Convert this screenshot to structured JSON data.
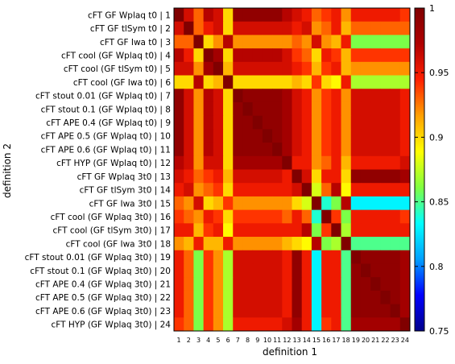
{
  "chart_data": {
    "type": "heatmap",
    "xlabel": "definition 1",
    "ylabel": "definition 2",
    "x_tick_labels": [
      "1",
      "2",
      "3",
      "4",
      "5",
      "6",
      "7",
      "8",
      "9",
      "10",
      "11",
      "12",
      "13",
      "14",
      "15",
      "16",
      "17",
      "18",
      "19",
      "20",
      "21",
      "22",
      "23",
      "24"
    ],
    "y_tick_labels": [
      "cFT GF Wplaq t0 | 1",
      "cFT GF tlSym t0 | 2",
      "cFT GF Iwa t0 | 3",
      "cFT cool (GF Wplaq t0) | 4",
      "cFT cool (GF tlSym t0) | 5",
      "cFT cool (GF Iwa t0) | 6",
      "cFT stout 0.01 (GF Wplaq t0) | 7",
      "cFT stout 0.1 (GF Wplaq t0) | 8",
      "cFT APE 0.4 (GF Wplaq t0) | 9",
      "cFT APE 0.5 (GF Wplaq t0) | 10",
      "cFT APE 0.6 (GF Wplaq t0) | 11",
      "cFT HYP (GF Wplaq t0) | 12",
      "cFT GF Wplaq 3t0 | 13",
      "cFT GF tlSym 3t0 | 14",
      "cFT GF Iwa 3t0 | 15",
      "cFT cool (GF Wplaq 3t0) | 16",
      "cFT cool (GF tlSym 3t0) | 17",
      "cFT cool (GF Iwa 3t0 | 18",
      "cFT stout 0.01 (GF Wplaq 3t0) | 19",
      "cFT stout 0.1 (GF Wplaq 3t0) | 20",
      "cFT APE 0.4 (GF Wplaq 3t0) | 21",
      "cFT APE 0.5 (GF Wplaq 3t0) | 22",
      "cFT APE 0.6 (GF Wplaq 3t0) | 23",
      "cFT HYP (GF Wplaq 3t0) | 24"
    ],
    "colorbar": {
      "min": 0.75,
      "max": 1.0,
      "ticks": [
        "1",
        "0.95",
        "0.9",
        "0.85",
        "0.8",
        "0.75"
      ]
    },
    "colorscale": [
      "#00008b",
      "#0000ff",
      "#00a0ff",
      "#00ffff",
      "#80ff40",
      "#ffff00",
      "#ffa000",
      "#ff2000",
      "#b00000",
      "#800000"
    ],
    "values": [
      [
        1.0,
        0.96,
        0.93,
        0.97,
        0.96,
        0.9,
        0.99,
        0.99,
        0.99,
        0.99,
        0.99,
        0.97,
        0.96,
        0.95,
        0.93,
        0.94,
        0.95,
        0.92,
        0.95,
        0.95,
        0.95,
        0.95,
        0.95,
        0.94
      ],
      [
        0.96,
        1.0,
        0.93,
        0.95,
        0.96,
        0.9,
        0.96,
        0.96,
        0.96,
        0.96,
        0.96,
        0.96,
        0.95,
        0.96,
        0.92,
        0.93,
        0.95,
        0.91,
        0.93,
        0.93,
        0.93,
        0.93,
        0.93,
        0.93
      ],
      [
        0.93,
        0.93,
        1.0,
        0.9,
        0.92,
        0.97,
        0.92,
        0.92,
        0.92,
        0.92,
        0.92,
        0.92,
        0.93,
        0.92,
        0.96,
        0.92,
        0.91,
        0.95,
        0.86,
        0.86,
        0.86,
        0.86,
        0.86,
        0.86
      ],
      [
        0.97,
        0.95,
        0.9,
        1.0,
        0.98,
        0.9,
        0.97,
        0.97,
        0.97,
        0.97,
        0.97,
        0.96,
        0.94,
        0.93,
        0.9,
        0.95,
        0.94,
        0.91,
        0.94,
        0.94,
        0.94,
        0.94,
        0.94,
        0.94
      ],
      [
        0.96,
        0.96,
        0.92,
        0.98,
        1.0,
        0.91,
        0.96,
        0.96,
        0.96,
        0.96,
        0.96,
        0.96,
        0.95,
        0.94,
        0.91,
        0.94,
        0.95,
        0.91,
        0.92,
        0.92,
        0.92,
        0.92,
        0.92,
        0.92
      ],
      [
        0.9,
        0.9,
        0.97,
        0.9,
        0.91,
        1.0,
        0.9,
        0.9,
        0.9,
        0.9,
        0.9,
        0.9,
        0.91,
        0.9,
        0.94,
        0.9,
        0.89,
        0.95,
        0.87,
        0.87,
        0.87,
        0.87,
        0.87,
        0.87
      ],
      [
        0.99,
        0.96,
        0.92,
        0.97,
        0.96,
        0.9,
        1.0,
        0.99,
        0.99,
        0.99,
        0.99,
        0.98,
        0.96,
        0.95,
        0.92,
        0.94,
        0.95,
        0.92,
        0.96,
        0.96,
        0.96,
        0.96,
        0.96,
        0.95
      ],
      [
        0.99,
        0.96,
        0.92,
        0.97,
        0.96,
        0.9,
        0.99,
        1.0,
        0.99,
        0.99,
        0.99,
        0.98,
        0.96,
        0.95,
        0.92,
        0.94,
        0.95,
        0.92,
        0.96,
        0.96,
        0.96,
        0.96,
        0.96,
        0.95
      ],
      [
        0.99,
        0.96,
        0.92,
        0.97,
        0.96,
        0.9,
        0.99,
        0.99,
        1.0,
        0.99,
        0.99,
        0.98,
        0.96,
        0.95,
        0.92,
        0.94,
        0.95,
        0.92,
        0.96,
        0.96,
        0.96,
        0.96,
        0.96,
        0.95
      ],
      [
        0.99,
        0.96,
        0.92,
        0.97,
        0.96,
        0.9,
        0.99,
        0.99,
        0.99,
        1.0,
        0.99,
        0.98,
        0.96,
        0.95,
        0.92,
        0.94,
        0.95,
        0.92,
        0.96,
        0.96,
        0.96,
        0.96,
        0.96,
        0.95
      ],
      [
        0.99,
        0.96,
        0.92,
        0.97,
        0.96,
        0.9,
        0.99,
        0.99,
        0.99,
        0.99,
        1.0,
        0.98,
        0.96,
        0.95,
        0.92,
        0.94,
        0.95,
        0.92,
        0.96,
        0.96,
        0.96,
        0.96,
        0.96,
        0.95
      ],
      [
        0.97,
        0.96,
        0.92,
        0.96,
        0.96,
        0.9,
        0.98,
        0.98,
        0.98,
        0.98,
        0.98,
        1.0,
        0.95,
        0.95,
        0.92,
        0.93,
        0.95,
        0.91,
        0.95,
        0.95,
        0.95,
        0.95,
        0.95,
        0.96
      ],
      [
        0.96,
        0.95,
        0.93,
        0.94,
        0.95,
        0.91,
        0.96,
        0.96,
        0.96,
        0.96,
        0.96,
        0.95,
        1.0,
        0.96,
        0.9,
        0.95,
        0.95,
        0.9,
        0.99,
        0.99,
        0.99,
        0.99,
        0.99,
        0.98
      ],
      [
        0.95,
        0.96,
        0.92,
        0.93,
        0.94,
        0.9,
        0.95,
        0.95,
        0.95,
        0.95,
        0.95,
        0.95,
        0.96,
        1.0,
        0.88,
        0.93,
        0.97,
        0.89,
        0.95,
        0.95,
        0.95,
        0.95,
        0.95,
        0.95
      ],
      [
        0.93,
        0.92,
        0.96,
        0.9,
        0.91,
        0.94,
        0.92,
        0.92,
        0.92,
        0.92,
        0.92,
        0.92,
        0.9,
        0.88,
        1.0,
        0.84,
        0.86,
        0.97,
        0.83,
        0.83,
        0.83,
        0.83,
        0.83,
        0.83
      ],
      [
        0.94,
        0.93,
        0.92,
        0.95,
        0.94,
        0.9,
        0.94,
        0.94,
        0.94,
        0.94,
        0.94,
        0.93,
        0.95,
        0.93,
        0.84,
        1.0,
        0.94,
        0.86,
        0.95,
        0.95,
        0.95,
        0.95,
        0.95,
        0.94
      ],
      [
        0.95,
        0.95,
        0.91,
        0.94,
        0.95,
        0.89,
        0.95,
        0.95,
        0.95,
        0.95,
        0.95,
        0.95,
        0.95,
        0.97,
        0.86,
        0.94,
        1.0,
        0.87,
        0.95,
        0.95,
        0.95,
        0.95,
        0.95,
        0.95
      ],
      [
        0.92,
        0.91,
        0.95,
        0.91,
        0.91,
        0.95,
        0.92,
        0.92,
        0.92,
        0.92,
        0.92,
        0.91,
        0.9,
        0.89,
        0.97,
        0.86,
        0.87,
        1.0,
        0.85,
        0.85,
        0.85,
        0.85,
        0.85,
        0.85
      ],
      [
        0.95,
        0.93,
        0.86,
        0.94,
        0.92,
        0.87,
        0.96,
        0.96,
        0.96,
        0.96,
        0.96,
        0.95,
        0.99,
        0.95,
        0.83,
        0.95,
        0.95,
        0.85,
        1.0,
        0.99,
        0.99,
        0.99,
        0.99,
        0.98
      ],
      [
        0.95,
        0.93,
        0.86,
        0.94,
        0.92,
        0.87,
        0.96,
        0.96,
        0.96,
        0.96,
        0.96,
        0.95,
        0.99,
        0.95,
        0.83,
        0.95,
        0.95,
        0.85,
        0.99,
        1.0,
        0.99,
        0.99,
        0.99,
        0.98
      ],
      [
        0.95,
        0.93,
        0.86,
        0.94,
        0.92,
        0.87,
        0.96,
        0.96,
        0.96,
        0.96,
        0.96,
        0.95,
        0.99,
        0.95,
        0.83,
        0.95,
        0.95,
        0.85,
        0.99,
        0.99,
        1.0,
        0.99,
        0.99,
        0.98
      ],
      [
        0.95,
        0.93,
        0.86,
        0.94,
        0.92,
        0.87,
        0.96,
        0.96,
        0.96,
        0.96,
        0.96,
        0.95,
        0.99,
        0.95,
        0.83,
        0.95,
        0.95,
        0.85,
        0.99,
        0.99,
        0.99,
        1.0,
        0.99,
        0.98
      ],
      [
        0.95,
        0.93,
        0.86,
        0.94,
        0.92,
        0.87,
        0.96,
        0.96,
        0.96,
        0.96,
        0.96,
        0.95,
        0.99,
        0.95,
        0.83,
        0.95,
        0.95,
        0.85,
        0.99,
        0.99,
        0.99,
        0.99,
        1.0,
        0.98
      ],
      [
        0.94,
        0.93,
        0.86,
        0.94,
        0.92,
        0.87,
        0.95,
        0.95,
        0.95,
        0.95,
        0.95,
        0.96,
        0.98,
        0.95,
        0.83,
        0.94,
        0.95,
        0.85,
        0.98,
        0.98,
        0.98,
        0.98,
        0.98,
        1.0
      ]
    ]
  }
}
